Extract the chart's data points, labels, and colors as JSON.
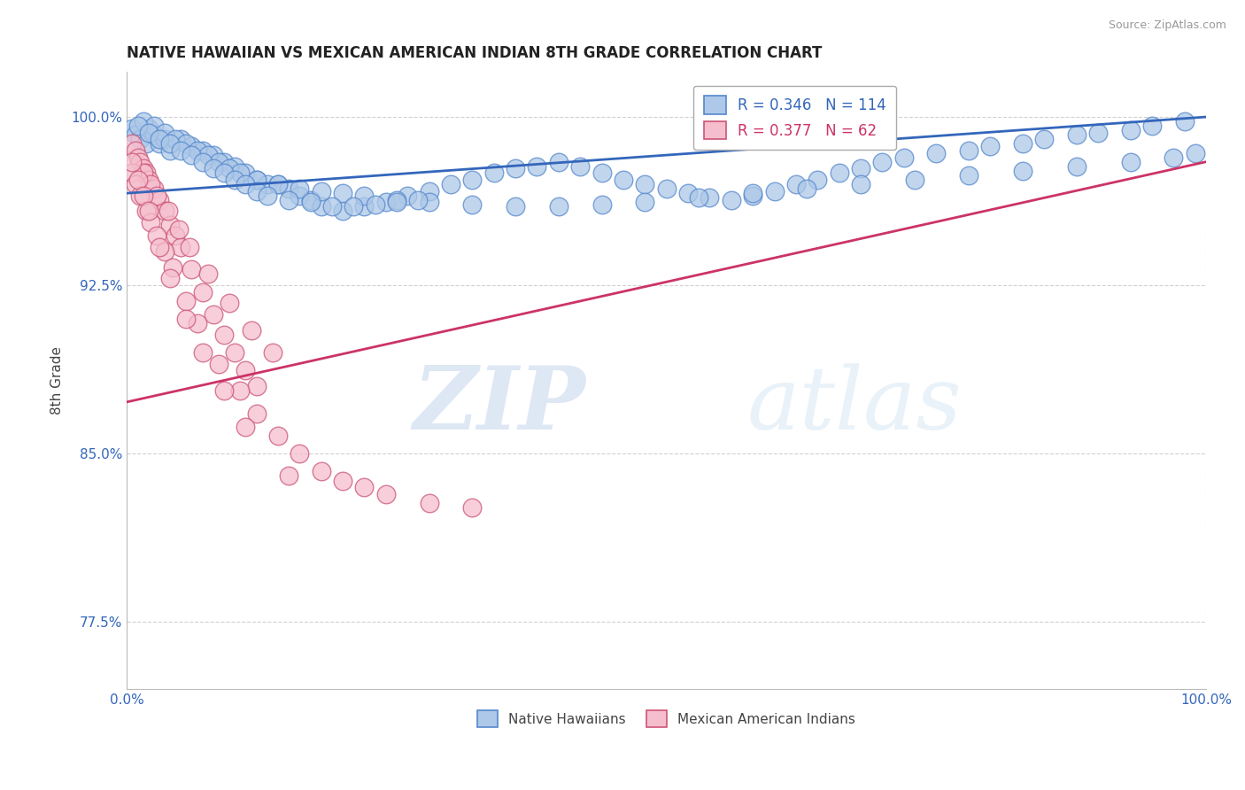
{
  "title": "NATIVE HAWAIIAN VS MEXICAN AMERICAN INDIAN 8TH GRADE CORRELATION CHART",
  "source": "Source: ZipAtlas.com",
  "ylabel": "8th Grade",
  "xmin": 0.0,
  "xmax": 1.0,
  "ymin": 0.745,
  "ymax": 1.02,
  "yticks": [
    0.775,
    0.85,
    0.925,
    1.0
  ],
  "ytick_labels": [
    "77.5%",
    "85.0%",
    "92.5%",
    "100.0%"
  ],
  "xtick_labels": [
    "0.0%",
    "100.0%"
  ],
  "xticks": [
    0.0,
    1.0
  ],
  "blue_R": 0.346,
  "blue_N": 114,
  "pink_R": 0.377,
  "pink_N": 62,
  "blue_color": "#adc8e8",
  "blue_edge": "#5588cc",
  "pink_color": "#f5bece",
  "pink_edge": "#cc5577",
  "blue_line_color": "#3366bb",
  "pink_line_color": "#cc3366",
  "legend_blue_label": "Native Hawaiians",
  "legend_pink_label": "Mexican American Indians",
  "watermark_zip": "ZIP",
  "watermark_atlas": "atlas",
  "grid_color": "#cccccc",
  "title_color": "#222222",
  "axis_label_color": "#444444",
  "ytick_color": "#3366bb",
  "background_color": "#ffffff",
  "blue_line_x0": 0.0,
  "blue_line_y0": 0.966,
  "blue_line_x1": 1.0,
  "blue_line_y1": 1.0,
  "pink_line_x0": 0.0,
  "pink_line_y0": 0.873,
  "pink_line_x1": 1.0,
  "pink_line_y1": 0.98,
  "blue_x": [
    0.005,
    0.008,
    0.012,
    0.018,
    0.02,
    0.025,
    0.03,
    0.035,
    0.04,
    0.05,
    0.06,
    0.07,
    0.08,
    0.09,
    0.1,
    0.11,
    0.12,
    0.13,
    0.14,
    0.15,
    0.16,
    0.17,
    0.18,
    0.2,
    0.22,
    0.24,
    0.26,
    0.28,
    0.3,
    0.32,
    0.34,
    0.36,
    0.38,
    0.4,
    0.42,
    0.44,
    0.46,
    0.48,
    0.5,
    0.52,
    0.54,
    0.56,
    0.58,
    0.6,
    0.62,
    0.64,
    0.66,
    0.68,
    0.7,
    0.72,
    0.75,
    0.78,
    0.8,
    0.83,
    0.85,
    0.88,
    0.9,
    0.93,
    0.95,
    0.98,
    0.015,
    0.025,
    0.035,
    0.045,
    0.055,
    0.065,
    0.075,
    0.085,
    0.095,
    0.105,
    0.12,
    0.14,
    0.16,
    0.18,
    0.2,
    0.22,
    0.25,
    0.28,
    0.32,
    0.36,
    0.4,
    0.44,
    0.48,
    0.53,
    0.58,
    0.63,
    0.68,
    0.73,
    0.78,
    0.83,
    0.88,
    0.93,
    0.97,
    0.99,
    0.01,
    0.02,
    0.03,
    0.04,
    0.05,
    0.06,
    0.07,
    0.08,
    0.09,
    0.1,
    0.11,
    0.12,
    0.13,
    0.15,
    0.17,
    0.19,
    0.21,
    0.23,
    0.25,
    0.27
  ],
  "blue_y": [
    0.995,
    0.992,
    0.99,
    0.988,
    0.995,
    0.992,
    0.988,
    0.99,
    0.985,
    0.99,
    0.987,
    0.985,
    0.983,
    0.98,
    0.978,
    0.975,
    0.972,
    0.97,
    0.97,
    0.968,
    0.965,
    0.963,
    0.96,
    0.958,
    0.96,
    0.962,
    0.965,
    0.967,
    0.97,
    0.972,
    0.975,
    0.977,
    0.978,
    0.98,
    0.978,
    0.975,
    0.972,
    0.97,
    0.968,
    0.966,
    0.964,
    0.963,
    0.965,
    0.967,
    0.97,
    0.972,
    0.975,
    0.977,
    0.98,
    0.982,
    0.984,
    0.985,
    0.987,
    0.988,
    0.99,
    0.992,
    0.993,
    0.994,
    0.996,
    0.998,
    0.998,
    0.996,
    0.993,
    0.99,
    0.988,
    0.985,
    0.983,
    0.98,
    0.977,
    0.975,
    0.972,
    0.97,
    0.968,
    0.967,
    0.966,
    0.965,
    0.963,
    0.962,
    0.961,
    0.96,
    0.96,
    0.961,
    0.962,
    0.964,
    0.966,
    0.968,
    0.97,
    0.972,
    0.974,
    0.976,
    0.978,
    0.98,
    0.982,
    0.984,
    0.996,
    0.993,
    0.99,
    0.988,
    0.985,
    0.983,
    0.98,
    0.977,
    0.975,
    0.972,
    0.97,
    0.967,
    0.965,
    0.963,
    0.962,
    0.96,
    0.96,
    0.961,
    0.962,
    0.963
  ],
  "pink_x": [
    0.005,
    0.008,
    0.01,
    0.012,
    0.015,
    0.018,
    0.02,
    0.025,
    0.03,
    0.035,
    0.04,
    0.045,
    0.05,
    0.06,
    0.07,
    0.08,
    0.09,
    0.1,
    0.11,
    0.12,
    0.015,
    0.022,
    0.028,
    0.038,
    0.048,
    0.058,
    0.075,
    0.095,
    0.115,
    0.135,
    0.005,
    0.008,
    0.012,
    0.018,
    0.022,
    0.028,
    0.035,
    0.042,
    0.055,
    0.065,
    0.085,
    0.105,
    0.12,
    0.14,
    0.16,
    0.18,
    0.2,
    0.22,
    0.24,
    0.28,
    0.32,
    0.005,
    0.01,
    0.015,
    0.02,
    0.03,
    0.04,
    0.055,
    0.07,
    0.09,
    0.11,
    0.15
  ],
  "pink_y": [
    0.988,
    0.985,
    0.982,
    0.98,
    0.977,
    0.975,
    0.972,
    0.968,
    0.963,
    0.958,
    0.952,
    0.947,
    0.942,
    0.932,
    0.922,
    0.912,
    0.903,
    0.895,
    0.887,
    0.88,
    0.975,
    0.97,
    0.965,
    0.958,
    0.95,
    0.942,
    0.93,
    0.917,
    0.905,
    0.895,
    0.975,
    0.97,
    0.965,
    0.958,
    0.953,
    0.947,
    0.94,
    0.933,
    0.918,
    0.908,
    0.89,
    0.878,
    0.868,
    0.858,
    0.85,
    0.842,
    0.838,
    0.835,
    0.832,
    0.828,
    0.826,
    0.98,
    0.972,
    0.965,
    0.958,
    0.942,
    0.928,
    0.91,
    0.895,
    0.878,
    0.862,
    0.84
  ]
}
